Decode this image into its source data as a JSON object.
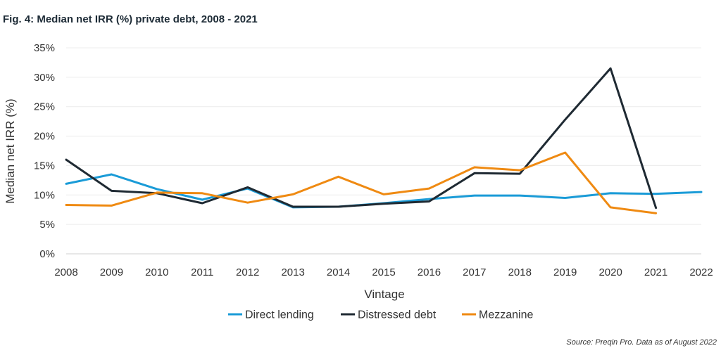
{
  "chart_data": {
    "type": "line",
    "title": "Fig. 4: Median net IRR (%) private debt, 2008 - 2021",
    "xlabel": "Vintage",
    "ylabel": "Median net IRR (%)",
    "source": "Source: Preqin Pro. Data as of August 2022",
    "x": [
      2008,
      2009,
      2010,
      2011,
      2012,
      2013,
      2014,
      2015,
      2016,
      2017,
      2018,
      2019,
      2020,
      2021,
      2022
    ],
    "x_tick_labels": [
      "2008",
      "2009",
      "2010",
      "2011",
      "2012",
      "2013",
      "2014",
      "2015",
      "2016",
      "2017",
      "2018",
      "2019",
      "2020",
      "2021",
      "2022"
    ],
    "ylim": [
      0,
      35
    ],
    "y_ticks": [
      0,
      5,
      10,
      15,
      20,
      25,
      30,
      35
    ],
    "y_tick_labels": [
      "0%",
      "5%",
      "10%",
      "15%",
      "20%",
      "25%",
      "30%",
      "35%"
    ],
    "grid": true,
    "legend_position": "bottom-center",
    "series": [
      {
        "name": "Direct lending",
        "color": "#1a9bd7",
        "x": [
          2008,
          2009,
          2010,
          2011,
          2012,
          2013,
          2014,
          2015,
          2016,
          2017,
          2018,
          2019,
          2020,
          2021,
          2022
        ],
        "values": [
          11.9,
          13.5,
          11.0,
          9.2,
          11.1,
          7.9,
          8.0,
          8.6,
          9.3,
          9.9,
          9.9,
          9.5,
          10.3,
          10.2,
          10.5
        ]
      },
      {
        "name": "Distressed debt",
        "color": "#1f2a33",
        "x": [
          2008,
          2009,
          2010,
          2011,
          2012,
          2013,
          2014,
          2015,
          2016,
          2017,
          2018,
          2019,
          2020,
          2021
        ],
        "values": [
          16.0,
          10.7,
          10.3,
          8.6,
          11.3,
          8.0,
          8.0,
          8.5,
          8.9,
          13.7,
          13.6,
          22.8,
          31.5,
          7.8
        ]
      },
      {
        "name": "Mezzanine",
        "color": "#ef8a12",
        "x": [
          2008,
          2009,
          2010,
          2011,
          2012,
          2013,
          2014,
          2015,
          2016,
          2017,
          2018,
          2019,
          2020,
          2021
        ],
        "values": [
          8.3,
          8.2,
          10.4,
          10.3,
          8.7,
          10.1,
          13.1,
          10.1,
          11.1,
          14.7,
          14.2,
          17.2,
          7.9,
          6.9
        ]
      }
    ]
  }
}
